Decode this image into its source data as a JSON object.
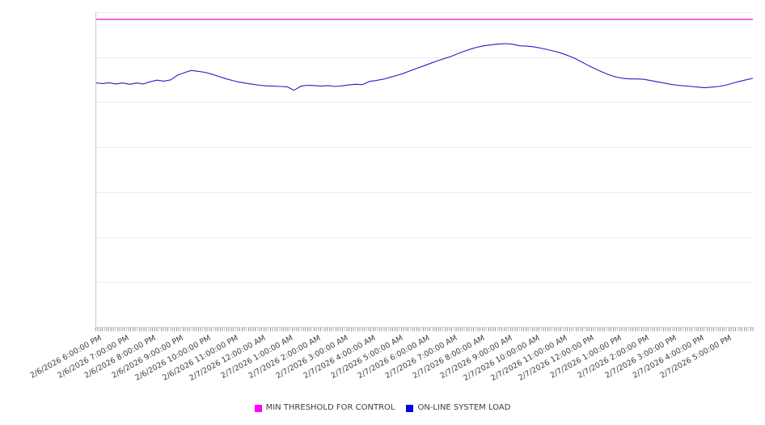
{
  "chart_data": {
    "type": "line",
    "title": "",
    "xlabel": "",
    "ylabel": "",
    "ylim": [
      0,
      100
    ],
    "y_axis_labels_visible": false,
    "y_gridline_intervals": 7,
    "gridlines": "horizontal",
    "legend_position": "bottom-center",
    "x_labels": [
      "2/6/2026 6:00:00 PM",
      "2/6/2026 7:00:00 PM",
      "2/6/2026 8:00:00 PM",
      "2/6/2026 9:00:00 PM",
      "2/6/2026 10:00:00 PM",
      "2/6/2026 11:00:00 PM",
      "2/7/2026 12:00:00 AM",
      "2/7/2026 1:00:00 AM",
      "2/7/2026 2:00:00 AM",
      "2/7/2026 3:00:00 AM",
      "2/7/2026 4:00:00 AM",
      "2/7/2026 5:00:00 AM",
      "2/7/2026 6:00:00 AM",
      "2/7/2026 7:00:00 AM",
      "2/7/2026 8:00:00 AM",
      "2/7/2026 9:00:00 AM",
      "2/7/2026 10:00:00 AM",
      "2/7/2026 11:00:00 AM",
      "2/7/2026 12:00:00 PM",
      "2/7/2026 1:00:00 PM",
      "2/7/2026 2:00:00 PM",
      "2/7/2026 3:00:00 PM",
      "2/7/2026 4:00:00 PM",
      "2/7/2026 5:00:00 PM"
    ],
    "series": [
      {
        "name": "MIN THRESHOLD FOR CONTROL",
        "style": "horizontal-threshold",
        "color": "#ff00ff",
        "line_color": "#ee00ee",
        "value": 97.7
      },
      {
        "name": "ON-LINE SYSTEM LOAD",
        "style": "line",
        "color": "#0000ee",
        "line_color": "#2121c8",
        "start": "2/6/2026 6:00:00 PM",
        "interval_minutes": 15,
        "values": [
          77.6,
          77.3,
          77.6,
          77.2,
          77.5,
          77.1,
          77.5,
          77.2,
          77.9,
          78.4,
          78.1,
          78.5,
          80.0,
          80.8,
          81.5,
          81.2,
          80.9,
          80.3,
          79.6,
          78.9,
          78.3,
          77.8,
          77.4,
          77.1,
          76.8,
          76.6,
          76.5,
          76.4,
          76.3,
          75.2,
          76.5,
          76.8,
          76.7,
          76.5,
          76.7,
          76.4,
          76.6,
          76.9,
          77.1,
          77.0,
          78.0,
          78.3,
          78.7,
          79.3,
          79.9,
          80.6,
          81.4,
          82.2,
          83.0,
          83.8,
          84.6,
          85.3,
          86.0,
          86.9,
          87.7,
          88.4,
          89.0,
          89.4,
          89.7,
          89.9,
          90.0,
          89.8,
          89.3,
          89.2,
          89.0,
          88.6,
          88.1,
          87.6,
          87.0,
          86.2,
          85.3,
          84.2,
          83.0,
          82.0,
          81.0,
          80.1,
          79.4,
          79.0,
          78.8,
          78.8,
          78.7,
          78.3,
          77.9,
          77.5,
          77.1,
          76.8,
          76.6,
          76.4,
          76.2,
          76.0,
          76.2,
          76.4,
          76.8,
          77.4,
          78.0,
          78.5,
          79.0
        ]
      }
    ]
  },
  "legend": {
    "items": [
      {
        "label": "MIN THRESHOLD FOR CONTROL",
        "color": "#ff00ff"
      },
      {
        "label": "ON-LINE SYSTEM LOAD",
        "color": "#0000ee"
      }
    ]
  },
  "colors": {
    "gridline": "#ececec",
    "axis": "#c8c8c8",
    "tick": "#9a9a9a",
    "label_text": "#3e3e3e"
  }
}
